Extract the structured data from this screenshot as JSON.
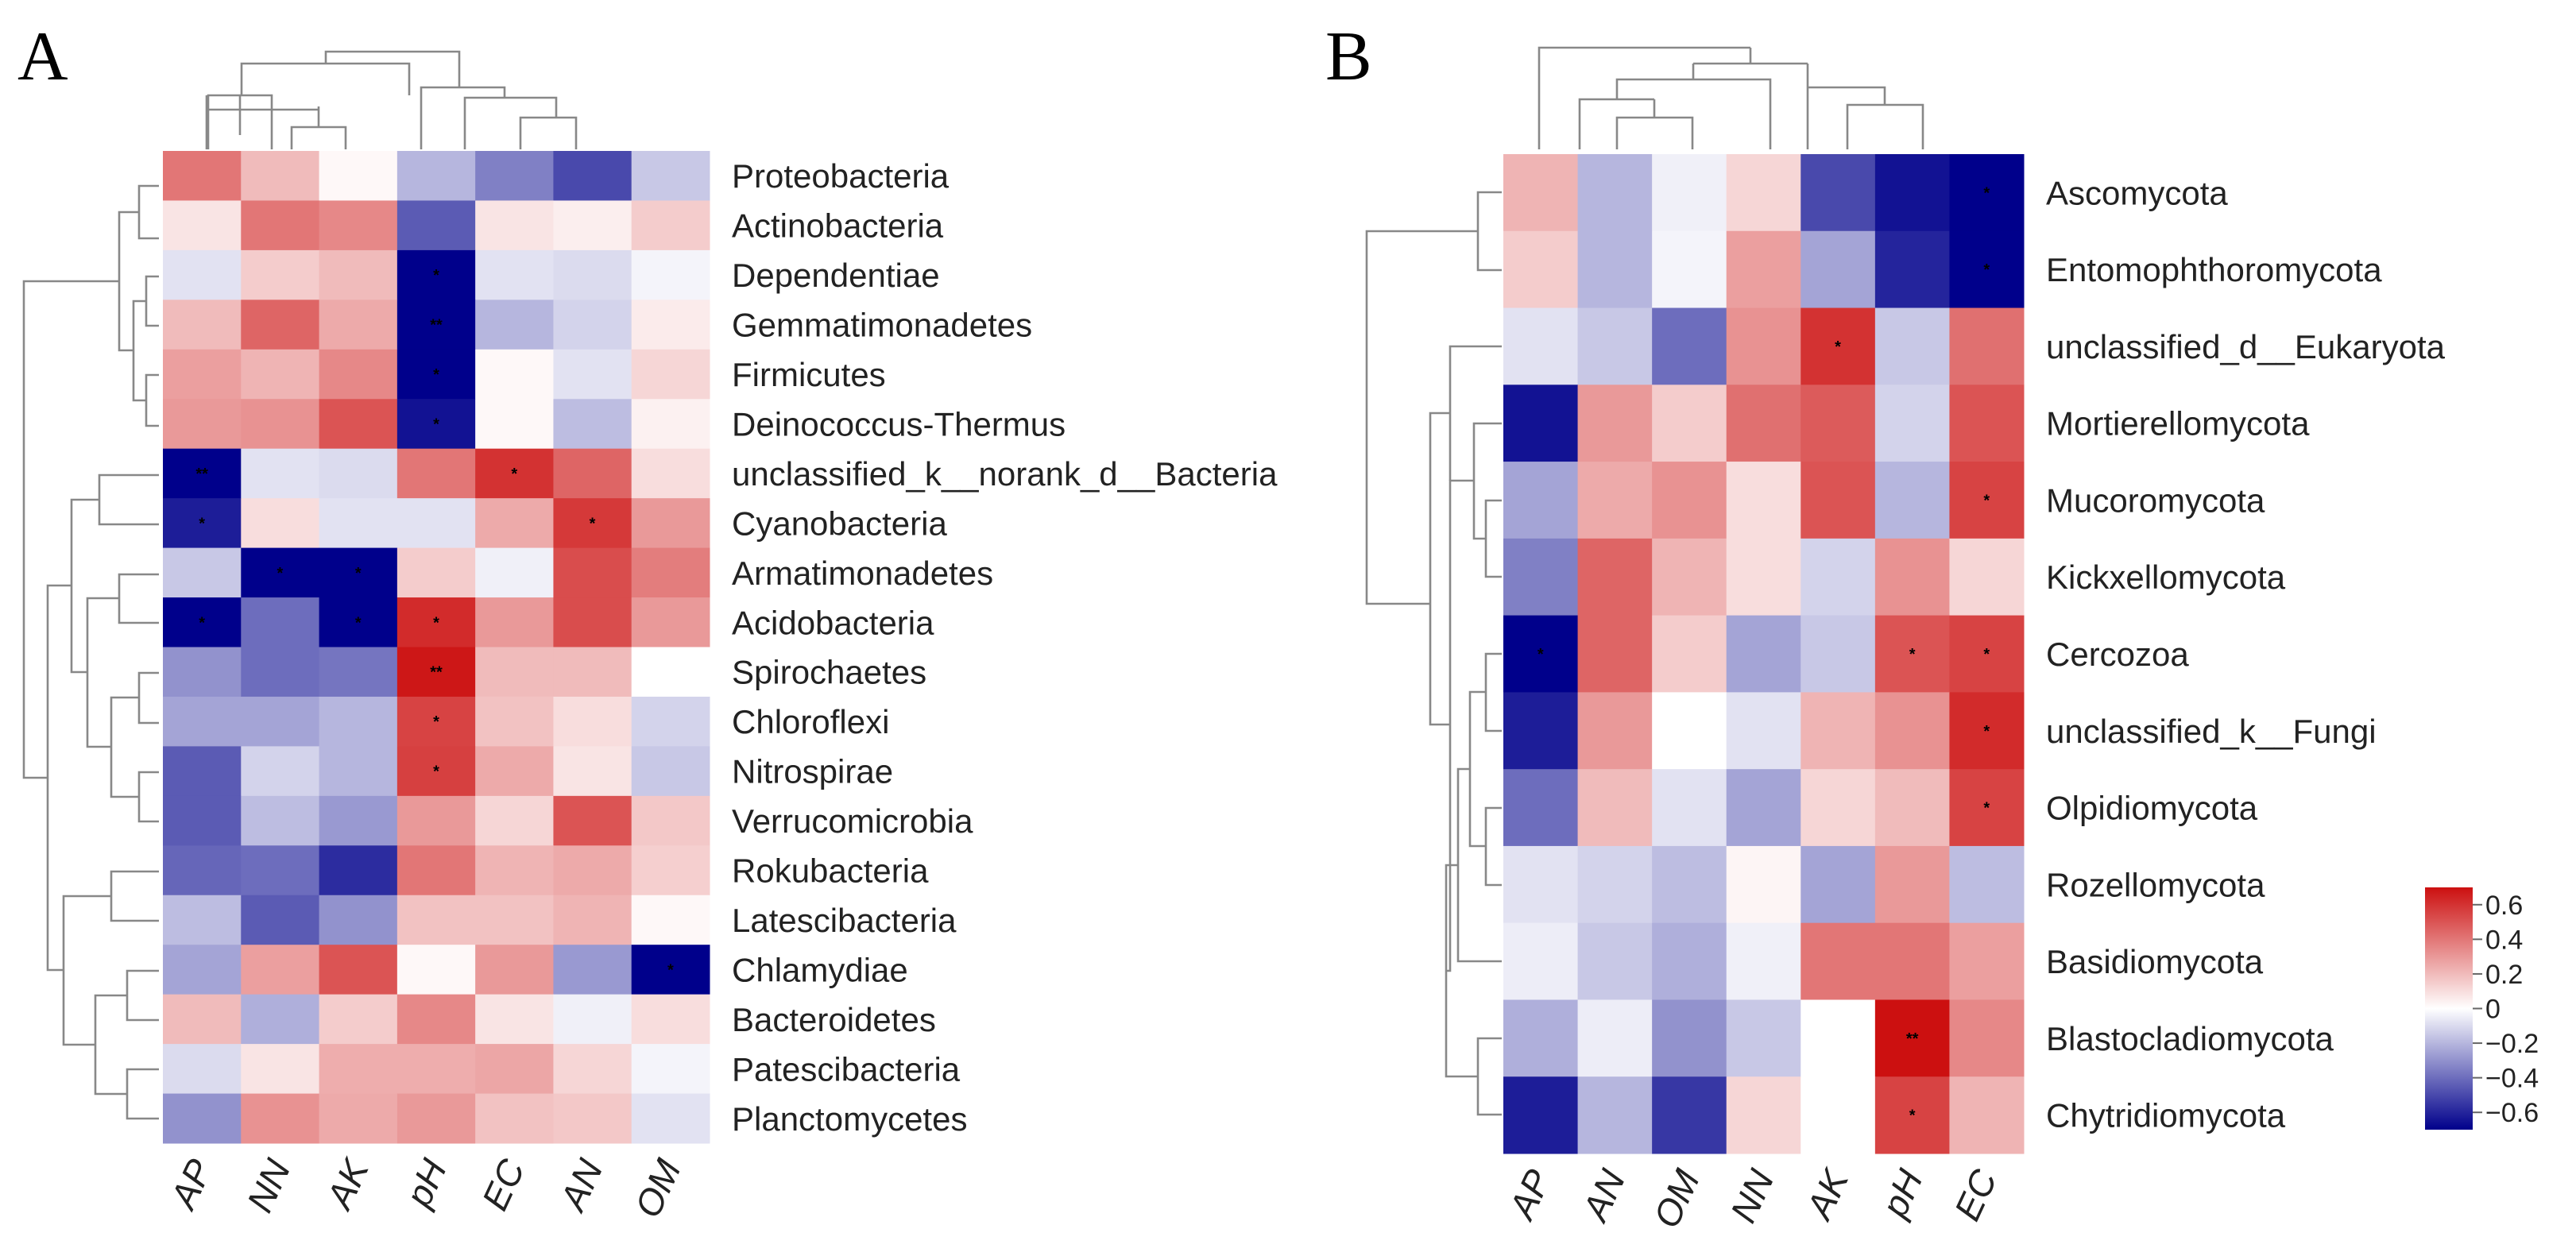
{
  "panels": [
    {
      "label": "A"
    },
    {
      "label": "B"
    }
  ],
  "chart_data": [
    {
      "type": "heatmap",
      "title": "",
      "panel": "A",
      "columns": [
        "AP",
        "NN",
        "AK",
        "pH",
        "EC",
        "AN",
        "OM"
      ],
      "rows": [
        "Proteobacteria",
        "Actinobacteria",
        "Dependentiae",
        "Gemmatimonadetes",
        "Firmicutes",
        "Deinococcus-Thermus",
        "unclassified_k__norank_d__Bacteria",
        "Cyanobacteria",
        "Armatimonadetes",
        "Acidobacteria",
        "Spirochaetes",
        "Chloroflexi",
        "Nitrospirae",
        "Verrucomicrobia",
        "Rokubacteria",
        "Latescibacteria",
        "Chlamydiae",
        "Bacteroidetes",
        "Patescibacteria",
        "Planctomycetes"
      ],
      "values": [
        [
          0.4,
          0.2,
          0.02,
          -0.2,
          -0.35,
          -0.5,
          -0.15
        ],
        [
          0.08,
          0.4,
          0.35,
          -0.45,
          0.08,
          0.05,
          0.15
        ],
        [
          -0.08,
          0.15,
          0.2,
          -0.7,
          -0.08,
          -0.1,
          -0.03
        ],
        [
          0.2,
          0.45,
          0.25,
          -0.7,
          -0.2,
          -0.12,
          0.06
        ],
        [
          0.28,
          0.22,
          0.35,
          -0.7,
          0.02,
          -0.08,
          0.12
        ],
        [
          0.3,
          0.32,
          0.5,
          -0.65,
          0.02,
          -0.18,
          0.04
        ],
        [
          -0.72,
          -0.08,
          -0.1,
          0.4,
          0.6,
          0.45,
          0.1
        ],
        [
          -0.62,
          0.1,
          -0.08,
          -0.08,
          0.25,
          0.58,
          0.3
        ],
        [
          -0.15,
          -0.7,
          -0.72,
          0.15,
          -0.04,
          0.52,
          0.38
        ],
        [
          -0.72,
          -0.4,
          -0.7,
          0.62,
          0.3,
          0.52,
          0.3
        ],
        [
          -0.3,
          -0.4,
          -0.38,
          0.68,
          0.2,
          0.2,
          0.0
        ],
        [
          -0.25,
          -0.25,
          -0.2,
          0.55,
          0.18,
          0.1,
          -0.12
        ],
        [
          -0.45,
          -0.12,
          -0.2,
          0.56,
          0.25,
          0.08,
          -0.15
        ],
        [
          -0.45,
          -0.18,
          -0.28,
          0.3,
          0.12,
          0.5,
          0.16
        ],
        [
          -0.42,
          -0.4,
          -0.58,
          0.4,
          0.22,
          0.25,
          0.14
        ],
        [
          -0.18,
          -0.45,
          -0.3,
          0.18,
          0.18,
          0.22,
          0.02
        ],
        [
          -0.25,
          0.28,
          0.5,
          0.02,
          0.3,
          -0.28,
          -0.7
        ],
        [
          0.2,
          -0.22,
          0.15,
          0.35,
          0.08,
          -0.04,
          0.1
        ],
        [
          -0.1,
          0.08,
          0.24,
          0.24,
          0.26,
          0.12,
          -0.03
        ],
        [
          -0.3,
          0.32,
          0.25,
          0.3,
          0.18,
          0.16,
          -0.08
        ]
      ],
      "significance": [
        [
          "",
          "",
          "",
          "",
          "",
          "",
          ""
        ],
        [
          "",
          "",
          "",
          "",
          "",
          "",
          ""
        ],
        [
          "",
          "",
          "",
          "*",
          "",
          "",
          ""
        ],
        [
          "",
          "",
          "",
          "**",
          "",
          "",
          ""
        ],
        [
          "",
          "",
          "",
          "*",
          "",
          "",
          ""
        ],
        [
          "",
          "",
          "",
          "*",
          "",
          "",
          ""
        ],
        [
          "**",
          "",
          "",
          "",
          "*",
          "",
          ""
        ],
        [
          "*",
          "",
          "",
          "",
          "",
          "*",
          ""
        ],
        [
          "",
          "*",
          "*",
          "",
          "",
          "",
          ""
        ],
        [
          "*",
          "",
          "*",
          "*",
          "",
          "",
          ""
        ],
        [
          "",
          "",
          "",
          "**",
          "",
          "",
          ""
        ],
        [
          "",
          "",
          "",
          "*",
          "",
          "",
          ""
        ],
        [
          "",
          "",
          "",
          "*",
          "",
          "",
          ""
        ],
        [
          "",
          "",
          "",
          "",
          "",
          "",
          ""
        ],
        [
          "",
          "",
          "",
          "",
          "",
          "",
          ""
        ],
        [
          "",
          "",
          "",
          "",
          "",
          "",
          ""
        ],
        [
          "",
          "",
          "",
          "",
          "",
          "",
          "*"
        ],
        [
          "",
          "",
          "",
          "",
          "",
          "",
          ""
        ],
        [
          "",
          "",
          "",
          "",
          "",
          "",
          ""
        ],
        [
          "",
          "",
          "",
          "",
          "",
          "",
          ""
        ]
      ]
    },
    {
      "type": "heatmap",
      "title": "",
      "panel": "B",
      "columns": [
        "AP",
        "AN",
        "OM",
        "NN",
        "AK",
        "pH",
        "EC"
      ],
      "rows": [
        "Ascomycota",
        "Entomophthoromycota",
        "unclassified_d__Eukaryota",
        "Mortierellomycota",
        "Mucoromycota",
        "Kickxellomycota",
        "Cercozoa",
        "unclassified_k__Fungi",
        "Olpidiomycota",
        "Rozellomycota",
        "Basidiomycota",
        "Blastocladiomycota",
        "Chytridiomycota"
      ],
      "values": [
        [
          0.22,
          -0.2,
          -0.04,
          0.12,
          -0.5,
          -0.65,
          -0.72
        ],
        [
          0.15,
          -0.2,
          -0.03,
          0.28,
          -0.25,
          -0.6,
          -0.7
        ],
        [
          -0.08,
          -0.15,
          -0.4,
          0.32,
          0.6,
          -0.15,
          0.42
        ],
        [
          -0.65,
          0.3,
          0.15,
          0.42,
          0.48,
          -0.12,
          0.5
        ],
        [
          -0.25,
          0.25,
          0.32,
          0.1,
          0.5,
          -0.2,
          0.55
        ],
        [
          -0.35,
          0.45,
          0.22,
          0.1,
          -0.12,
          0.32,
          0.12
        ],
        [
          -0.75,
          0.45,
          0.15,
          -0.25,
          -0.15,
          0.5,
          0.55
        ],
        [
          -0.62,
          0.3,
          0.0,
          -0.08,
          0.22,
          0.32,
          0.62
        ],
        [
          -0.4,
          0.2,
          -0.08,
          -0.25,
          0.12,
          0.2,
          0.55
        ],
        [
          -0.08,
          -0.12,
          -0.18,
          0.03,
          -0.25,
          0.3,
          -0.18
        ],
        [
          -0.05,
          -0.15,
          -0.22,
          -0.04,
          0.4,
          0.4,
          0.28
        ],
        [
          -0.22,
          -0.05,
          -0.3,
          -0.15,
          0.0,
          0.7,
          0.35
        ],
        [
          -0.62,
          -0.2,
          -0.55,
          0.12,
          0.0,
          0.55,
          0.22
        ]
      ],
      "significance": [
        [
          "",
          "",
          "",
          "",
          "",
          "",
          "*"
        ],
        [
          "",
          "",
          "",
          "",
          "",
          "",
          "*"
        ],
        [
          "",
          "",
          "",
          "",
          "*",
          "",
          ""
        ],
        [
          "",
          "",
          "",
          "",
          "",
          "",
          ""
        ],
        [
          "",
          "",
          "",
          "",
          "",
          "",
          "*"
        ],
        [
          "",
          "",
          "",
          "",
          "",
          "",
          ""
        ],
        [
          "*",
          "",
          "",
          "",
          "",
          "*",
          "*"
        ],
        [
          "",
          "",
          "",
          "",
          "",
          "",
          "*"
        ],
        [
          "",
          "",
          "",
          "",
          "",
          "",
          "*"
        ],
        [
          "",
          "",
          "",
          "",
          "",
          "",
          ""
        ],
        [
          "",
          "",
          "",
          "",
          "",
          "",
          ""
        ],
        [
          "",
          "",
          "",
          "",
          "",
          "**",
          ""
        ],
        [
          "",
          "",
          "",
          "",
          "",
          "*",
          ""
        ]
      ],
      "legend": {
        "ticks": [
          0.6,
          0.4,
          0.2,
          0,
          -0.2,
          -0.4,
          -0.6
        ],
        "tick_labels": [
          "0.6",
          "0.4",
          "0.2",
          "0",
          "−0.2",
          "−0.4",
          "−0.6"
        ],
        "range": [
          -0.7,
          0.7
        ],
        "position": "bottom-right"
      }
    }
  ],
  "colors": {
    "low": "#00008b",
    "mid": "#ffffff",
    "high": "#cc1010"
  }
}
